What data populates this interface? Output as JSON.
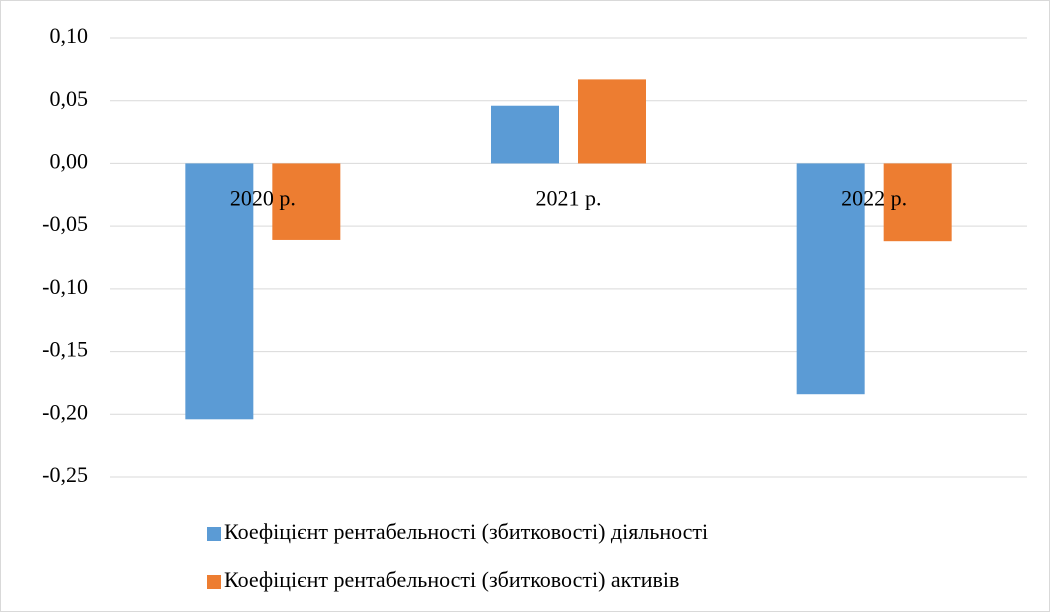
{
  "chart_data": {
    "type": "bar",
    "categories": [
      "2020 р.",
      "2021 р.",
      "2022 р."
    ],
    "series": [
      {
        "name": "Коефіцієнт рентабельності (збитковості) діяльності",
        "color": "#5b9bd5",
        "values": [
          -0.204,
          0.046,
          -0.184
        ]
      },
      {
        "name": "Коефіцієнт рентабельності (збитковості) активів",
        "color": "#ed7d31",
        "values": [
          -0.061,
          0.067,
          -0.062
        ]
      }
    ],
    "ylim": [
      -0.25,
      0.1
    ],
    "yticks": [
      {
        "value": -0.25,
        "label": "-0,25"
      },
      {
        "value": -0.2,
        "label": "-0,20"
      },
      {
        "value": -0.15,
        "label": "-0,15"
      },
      {
        "value": -0.1,
        "label": "-0,10"
      },
      {
        "value": -0.05,
        "label": "-0,05"
      },
      {
        "value": 0,
        "label": "0,00"
      },
      {
        "value": 0.05,
        "label": "0,05"
      },
      {
        "value": 0.1,
        "label": "0,10"
      }
    ],
    "grid": true,
    "legend": "bottom"
  }
}
